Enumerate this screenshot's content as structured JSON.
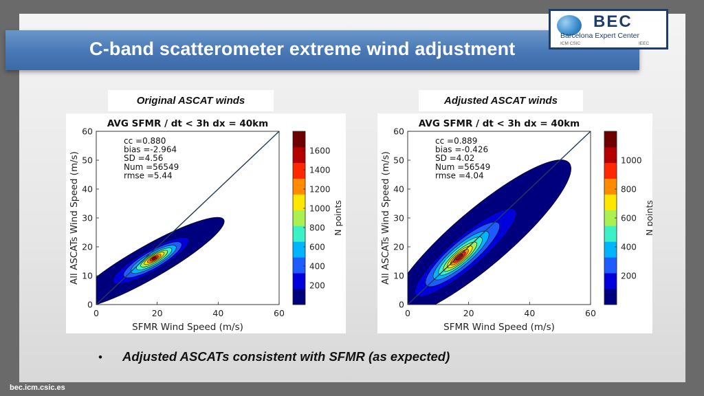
{
  "slide": {
    "title": "C-band scatterometer extreme wind adjustment",
    "bullet": "Adjusted ASCATs consistent with SFMR (as expected)",
    "footer": "bec.icm.csic.es"
  },
  "logo": {
    "name": "BEC",
    "subtitle": "Barcelona Expert Center",
    "footer_left": "ICM CSIC",
    "footer_right": "IEEC"
  },
  "panels": [
    {
      "label": "Original ASCAT winds"
    },
    {
      "label": "Adjusted ASCAT winds"
    }
  ],
  "colors": {
    "title_bar": "#4777b5",
    "logo_navy": "#1c3d6e",
    "one_to_one_line": "#1f3c58"
  },
  "chart_data": [
    {
      "type": "heatmap",
      "title": "AVG SFMR / dt < 3h dx = 40km",
      "xlabel": "SFMR Wind Speed (m/s)",
      "ylabel": "All ASCATs Wind Speed (m/s)",
      "xlim": [
        0,
        60
      ],
      "ylim": [
        0,
        60
      ],
      "x_ticks": [
        0,
        20,
        40,
        60
      ],
      "y_ticks": [
        0,
        10,
        20,
        30,
        40,
        50,
        60
      ],
      "one_to_one_line": true,
      "stats": [
        "cc    =0.880",
        "bias  =-2.964",
        "SD    =4.56",
        "Num   =56549",
        "rmse  =5.44"
      ],
      "colorbar": {
        "label": "N points",
        "max": 1800,
        "ticks": [
          200,
          400,
          600,
          800,
          1000,
          1200,
          1400,
          1600
        ],
        "colors": [
          "#00007f",
          "#0000dd",
          "#1e5cff",
          "#00b4ff",
          "#3cf0c8",
          "#aaf050",
          "#ffe600",
          "#ff8c00",
          "#ff2800",
          "#b40000",
          "#6e0000"
        ]
      },
      "density_levels": [
        {
          "cx": 17,
          "cy": 14.5,
          "major": 29,
          "minor": 5.6,
          "angle_deg": 31
        },
        {
          "cx": 18,
          "cy": 15.2,
          "major": 14.5,
          "minor": 3.6,
          "angle_deg": 31
        },
        {
          "cx": 18.5,
          "cy": 15.5,
          "major": 11,
          "minor": 2.9,
          "angle_deg": 31
        },
        {
          "cx": 18.8,
          "cy": 15.7,
          "major": 8.6,
          "minor": 2.3,
          "angle_deg": 31
        },
        {
          "cx": 19,
          "cy": 15.8,
          "major": 6.7,
          "minor": 1.8,
          "angle_deg": 31
        },
        {
          "cx": 19,
          "cy": 15.9,
          "major": 5.1,
          "minor": 1.4,
          "angle_deg": 31
        },
        {
          "cx": 19,
          "cy": 16,
          "major": 3.8,
          "minor": 1.05,
          "angle_deg": 31
        },
        {
          "cx": 19,
          "cy": 16,
          "major": 2.6,
          "minor": 0.75,
          "angle_deg": 31
        },
        {
          "cx": 19,
          "cy": 16,
          "major": 1.6,
          "minor": 0.5,
          "angle_deg": 31
        },
        {
          "cx": 19,
          "cy": 16,
          "major": 0.8,
          "minor": 0.28,
          "angle_deg": 31
        }
      ]
    },
    {
      "type": "heatmap",
      "title": "AVG SFMR / dt < 3h dx = 40km",
      "xlabel": "SFMR Wind Speed (m/s)",
      "ylabel": "All ASCATs Wind Speed (m/s)",
      "xlim": [
        0,
        60
      ],
      "ylim": [
        0,
        60
      ],
      "x_ticks": [
        0,
        20,
        40,
        60
      ],
      "y_ticks": [
        0,
        10,
        20,
        30,
        40,
        50,
        60
      ],
      "one_to_one_line": true,
      "stats": [
        "cc    =0.889",
        "bias  =-0.426",
        "SD    =4.02",
        "Num   =56549",
        "rmse  =4.04"
      ],
      "colorbar": {
        "label": "N points",
        "max": 1200,
        "ticks": [
          200,
          400,
          600,
          800,
          1000
        ],
        "colors": [
          "#00007f",
          "#0000dd",
          "#1e5cff",
          "#00b4ff",
          "#3cf0c8",
          "#aaf050",
          "#ffe600",
          "#ff8c00",
          "#ff2800",
          "#b40000",
          "#6e0000"
        ]
      },
      "density_levels": [
        {
          "cx": 24,
          "cy": 23,
          "major": 39,
          "minor": 9.5,
          "angle_deg": 42
        },
        {
          "cx": 19,
          "cy": 18,
          "major": 22,
          "minor": 5.3,
          "angle_deg": 42
        },
        {
          "cx": 18,
          "cy": 17.4,
          "major": 16,
          "minor": 4.2,
          "angle_deg": 42
        },
        {
          "cx": 17.5,
          "cy": 17,
          "major": 12,
          "minor": 3.3,
          "angle_deg": 42
        },
        {
          "cx": 17.3,
          "cy": 16.8,
          "major": 9.4,
          "minor": 2.6,
          "angle_deg": 42
        },
        {
          "cx": 17.2,
          "cy": 16.6,
          "major": 7.2,
          "minor": 2.0,
          "angle_deg": 42
        },
        {
          "cx": 17.1,
          "cy": 16.5,
          "major": 5.4,
          "minor": 1.55,
          "angle_deg": 42
        },
        {
          "cx": 17,
          "cy": 16.4,
          "major": 3.9,
          "minor": 1.15,
          "angle_deg": 42
        },
        {
          "cx": 17,
          "cy": 16.4,
          "major": 2.6,
          "minor": 0.8,
          "angle_deg": 42
        },
        {
          "cx": 17,
          "cy": 16.4,
          "major": 1.4,
          "minor": 0.45,
          "angle_deg": 42
        }
      ]
    }
  ]
}
